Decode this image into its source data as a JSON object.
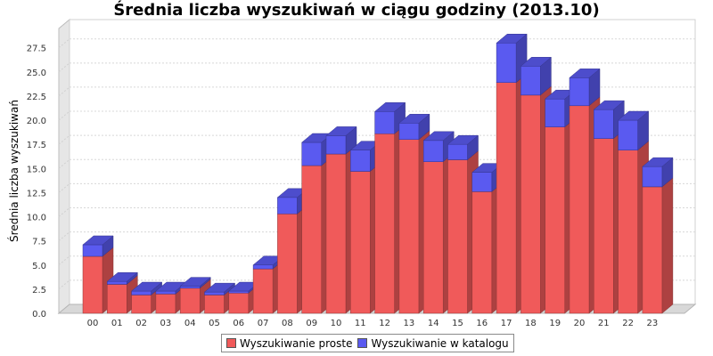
{
  "chart_data": {
    "type": "bar",
    "stacked": true,
    "three_d": true,
    "title": "Średnia liczba wyszukiwań w ciągu godziny (2013.10)",
    "ylabel": "Średnia liczba wyszukiwań",
    "xlabel": "",
    "ylim": [
      0,
      29.5
    ],
    "yticks": [
      "0.0",
      "2.5",
      "5.0",
      "7.5",
      "10.0",
      "12.5",
      "15.0",
      "17.5",
      "20.0",
      "22.5",
      "25.0",
      "27.5"
    ],
    "grid": true,
    "legend_position": "bottom",
    "categories": [
      "00",
      "01",
      "02",
      "03",
      "04",
      "05",
      "06",
      "07",
      "08",
      "09",
      "10",
      "11",
      "12",
      "13",
      "14",
      "15",
      "16",
      "17",
      "18",
      "19",
      "20",
      "21",
      "22",
      "23"
    ],
    "series": [
      {
        "name": "Wyszukiwanie proste",
        "color": "#f05a5a",
        "values": [
          5.9,
          3.0,
          1.9,
          2.0,
          2.6,
          1.9,
          2.1,
          4.6,
          10.3,
          15.3,
          16.5,
          14.7,
          18.6,
          18.0,
          15.7,
          15.9,
          12.6,
          23.9,
          22.6,
          19.3,
          21.5,
          18.1,
          16.9,
          13.1
        ]
      },
      {
        "name": "Wyszukiwanie w katalogu",
        "color": "#5a5af0",
        "values": [
          1.2,
          0.3,
          0.4,
          0.3,
          0.2,
          0.3,
          0.2,
          0.4,
          1.7,
          2.4,
          1.9,
          2.2,
          2.3,
          1.7,
          2.2,
          1.6,
          2.0,
          4.1,
          3.0,
          2.9,
          2.9,
          3.0,
          3.1,
          2.1
        ]
      }
    ]
  }
}
